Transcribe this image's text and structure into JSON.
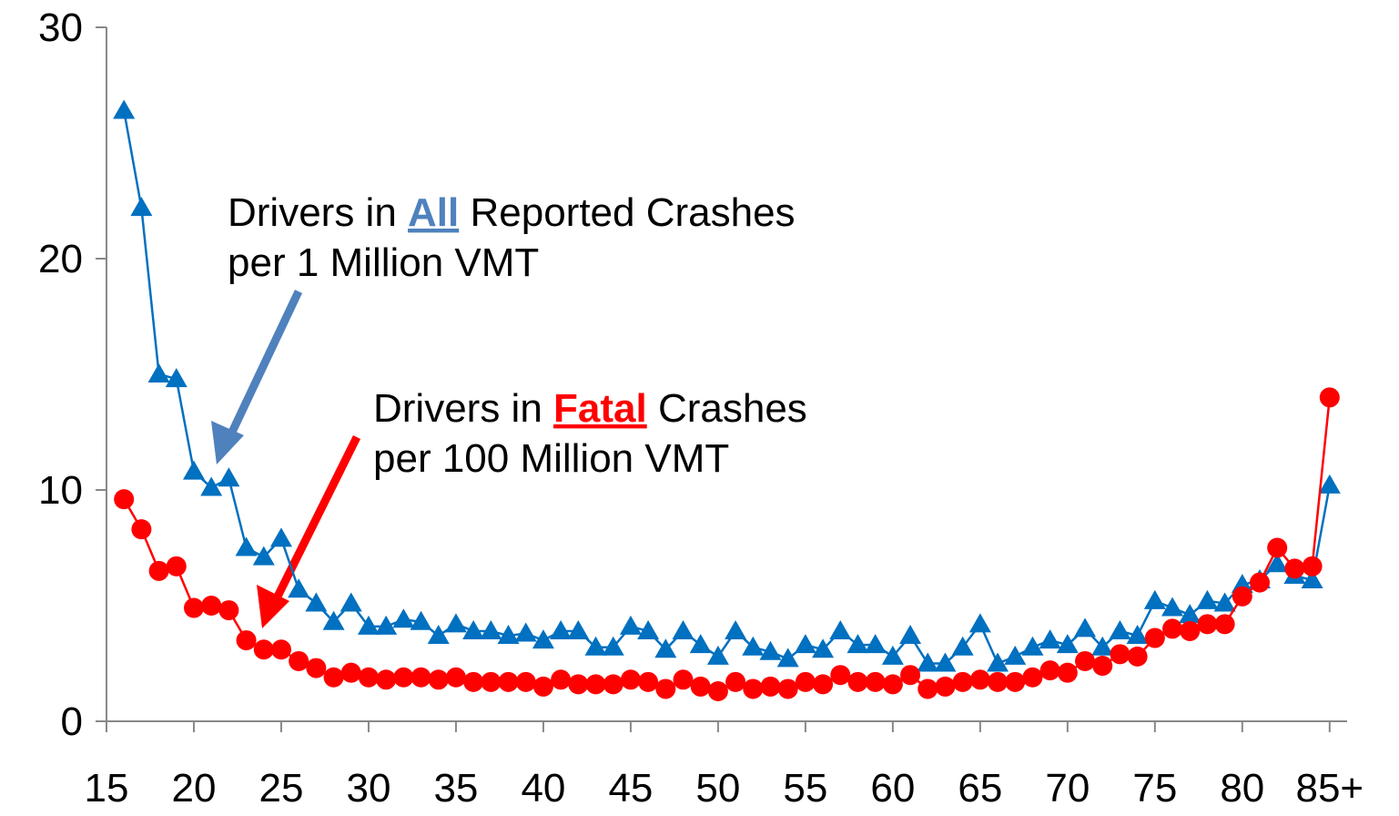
{
  "chart_data": {
    "type": "line",
    "x": [
      16,
      17,
      18,
      19,
      20,
      21,
      22,
      23,
      24,
      25,
      26,
      27,
      28,
      29,
      30,
      31,
      32,
      33,
      34,
      35,
      36,
      37,
      38,
      39,
      40,
      41,
      42,
      43,
      44,
      45,
      46,
      47,
      48,
      49,
      50,
      51,
      52,
      53,
      54,
      55,
      56,
      57,
      58,
      59,
      60,
      61,
      62,
      63,
      64,
      65,
      66,
      67,
      68,
      69,
      70,
      71,
      72,
      73,
      74,
      75,
      76,
      77,
      78,
      79,
      80,
      81,
      82,
      83,
      84,
      85
    ],
    "series": [
      {
        "color": "#0070c0",
        "marker": "triangle",
        "values": [
          26.4,
          22.2,
          15.0,
          14.8,
          10.8,
          10.1,
          10.5,
          7.5,
          7.1,
          7.9,
          5.7,
          5.1,
          4.3,
          5.1,
          4.1,
          4.1,
          4.4,
          4.3,
          3.7,
          4.2,
          3.9,
          3.9,
          3.7,
          3.8,
          3.5,
          3.9,
          3.9,
          3.2,
          3.2,
          4.1,
          3.9,
          3.1,
          3.9,
          3.3,
          2.8,
          3.9,
          3.2,
          3.0,
          2.7,
          3.3,
          3.1,
          3.9,
          3.3,
          3.3,
          2.8,
          3.7,
          2.5,
          2.5,
          3.2,
          4.2,
          2.5,
          2.8,
          3.2,
          3.5,
          3.3,
          4.0,
          3.2,
          3.9,
          3.7,
          5.2,
          4.9,
          4.6,
          5.2,
          5.1,
          5.9,
          6.1,
          6.8,
          6.3,
          6.1,
          10.2
        ]
      },
      {
        "color": "#ff0000",
        "marker": "circle",
        "values": [
          9.6,
          8.3,
          6.5,
          6.7,
          4.9,
          5.0,
          4.8,
          3.5,
          3.1,
          3.1,
          2.6,
          2.3,
          1.9,
          2.1,
          1.9,
          1.8,
          1.9,
          1.9,
          1.8,
          1.9,
          1.7,
          1.7,
          1.7,
          1.7,
          1.5,
          1.8,
          1.6,
          1.6,
          1.6,
          1.8,
          1.7,
          1.4,
          1.8,
          1.5,
          1.3,
          1.7,
          1.4,
          1.5,
          1.4,
          1.7,
          1.6,
          2.0,
          1.7,
          1.7,
          1.6,
          2.0,
          1.4,
          1.5,
          1.7,
          1.8,
          1.7,
          1.7,
          1.9,
          2.2,
          2.1,
          2.6,
          2.4,
          2.9,
          2.8,
          3.6,
          4.0,
          3.9,
          4.2,
          4.2,
          5.4,
          6.0,
          7.5,
          6.6,
          6.7,
          14.0
        ]
      }
    ],
    "xlim": [
      15,
      86
    ],
    "xticks": [
      15,
      20,
      25,
      30,
      35,
      40,
      45,
      50,
      55,
      60,
      65,
      70,
      75,
      80,
      {
        "value": 85,
        "label": "85+"
      }
    ],
    "ylim": [
      0,
      30
    ],
    "yticks": [
      0,
      10,
      20,
      30
    ],
    "annotations": [
      {
        "before": "Drivers in ",
        "highlight": "All",
        "after": " Reported Crashes",
        "line2": "per 1 Million VMT",
        "color": "#4f81bd"
      },
      {
        "before": "Drivers in ",
        "highlight": "Fatal",
        "after": " Crashes",
        "line2": "per 100 Million VMT",
        "color": "#ff0000"
      }
    ]
  }
}
